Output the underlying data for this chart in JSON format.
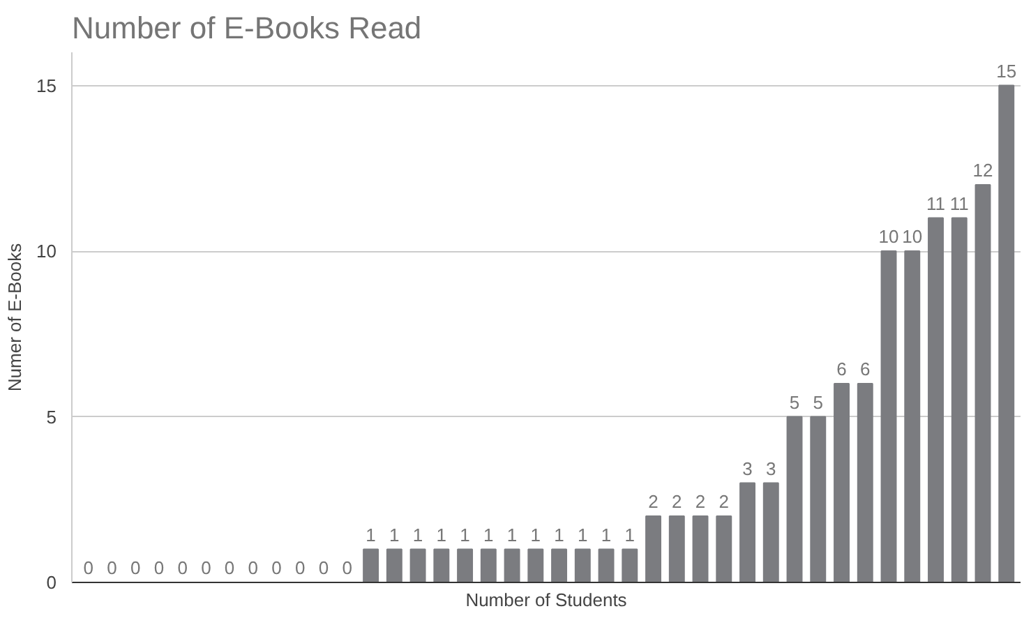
{
  "chart_data": {
    "type": "bar",
    "title": "Number of E-Books Read",
    "xlabel": "Number of Students",
    "ylabel": "Numer of E-Books",
    "categories": [
      null,
      null,
      null,
      null,
      null,
      null,
      null,
      null,
      null,
      null,
      null,
      null,
      null,
      null,
      null,
      null,
      null,
      null,
      null,
      null,
      null,
      null,
      null,
      null,
      null,
      null,
      null,
      null,
      null,
      null,
      null,
      null,
      null,
      null,
      null,
      null,
      null,
      null,
      null,
      null
    ],
    "values": [
      0,
      0,
      0,
      0,
      0,
      0,
      0,
      0,
      0,
      0,
      0,
      0,
      1,
      1,
      1,
      1,
      1,
      1,
      1,
      1,
      1,
      1,
      1,
      1,
      2,
      2,
      2,
      2,
      3,
      3,
      5,
      5,
      6,
      6,
      10,
      10,
      11,
      11,
      12,
      15
    ],
    "color": "#7b7c80",
    "ylim": [
      0,
      16
    ],
    "yticks": [
      0,
      5,
      10,
      15
    ],
    "grid": "y",
    "data_labels": true
  }
}
